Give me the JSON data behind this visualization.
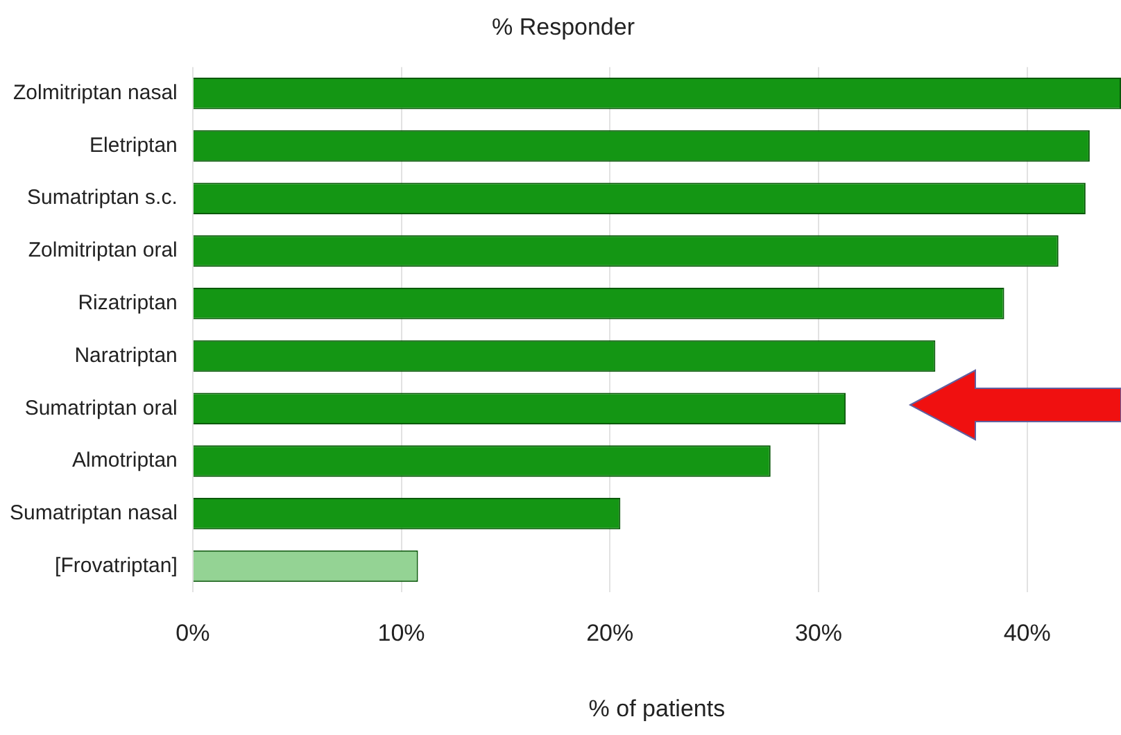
{
  "chart_data": {
    "type": "bar",
    "orientation": "horizontal",
    "title": "% Responder",
    "xlabel": "% of patients",
    "categories": [
      "Zolmitriptan nasal",
      "Eletriptan",
      "Sumatriptan s.c.",
      "Zolmitriptan oral",
      "Rizatriptan",
      "Naratriptan",
      "Sumatriptan oral",
      "Almotriptan",
      "Sumatriptan nasal",
      "[Frovatriptan]"
    ],
    "values": [
      44.5,
      43.0,
      42.8,
      41.5,
      38.9,
      35.6,
      31.3,
      27.7,
      20.5,
      10.8
    ],
    "colors": [
      "#149614",
      "#149614",
      "#149614",
      "#149614",
      "#149614",
      "#149614",
      "#149614",
      "#149614",
      "#149614",
      "#94d394"
    ],
    "xlim": [
      0,
      44.5
    ],
    "xticks": [
      {
        "value": 0,
        "label": "0%"
      },
      {
        "value": 10,
        "label": "10%"
      },
      {
        "value": 20,
        "label": "20%"
      },
      {
        "value": 30,
        "label": "30%"
      },
      {
        "value": 40,
        "label": "40%"
      }
    ],
    "grid": "x",
    "legend": false
  }
}
